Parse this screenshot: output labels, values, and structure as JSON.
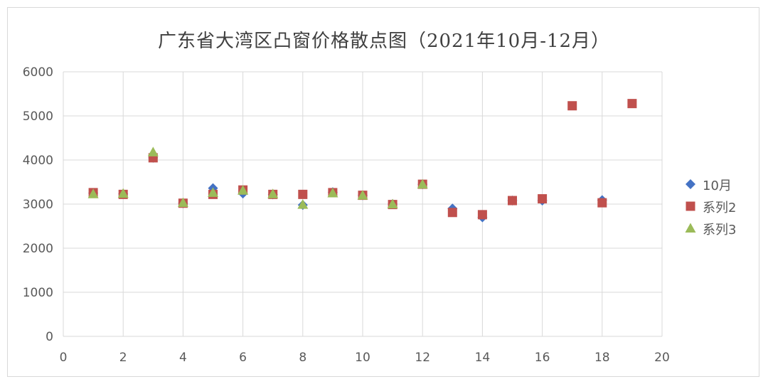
{
  "chart_data": {
    "type": "scatter",
    "title": "广东省大湾区凸窗价格散点图（2021年10月-12月）",
    "xlabel": "",
    "ylabel": "",
    "xlim": [
      0,
      20
    ],
    "ylim": [
      0,
      6000
    ],
    "x_ticks": [
      0,
      2,
      4,
      6,
      8,
      10,
      12,
      14,
      16,
      18,
      20
    ],
    "y_ticks": [
      0,
      1000,
      2000,
      3000,
      4000,
      5000,
      6000
    ],
    "grid": true,
    "legend_position": "right",
    "series": [
      {
        "name": "10月",
        "marker": "diamond",
        "color": "#4472C4",
        "points": [
          [
            1,
            3250
          ],
          [
            2,
            3230
          ],
          [
            3,
            4050
          ],
          [
            4,
            3020
          ],
          [
            5,
            3360
          ],
          [
            6,
            3240
          ],
          [
            7,
            3220
          ],
          [
            8,
            2980
          ],
          [
            9,
            3270
          ],
          [
            10,
            3200
          ],
          [
            11,
            3000
          ],
          [
            12,
            3450
          ],
          [
            13,
            2900
          ],
          [
            14,
            2700
          ],
          [
            15,
            3080
          ],
          [
            16,
            3080
          ],
          [
            18,
            3090
          ]
        ]
      },
      {
        "name": "系列2",
        "marker": "square",
        "color": "#C0504D",
        "points": [
          [
            1,
            3260
          ],
          [
            2,
            3220
          ],
          [
            3,
            4050
          ],
          [
            4,
            3020
          ],
          [
            5,
            3220
          ],
          [
            6,
            3320
          ],
          [
            7,
            3220
          ],
          [
            8,
            3220
          ],
          [
            9,
            3260
          ],
          [
            10,
            3200
          ],
          [
            11,
            2990
          ],
          [
            12,
            3450
          ],
          [
            13,
            2810
          ],
          [
            14,
            2760
          ],
          [
            15,
            3080
          ],
          [
            16,
            3120
          ],
          [
            17,
            5230
          ],
          [
            18,
            3030
          ],
          [
            19,
            5280
          ]
        ]
      },
      {
        "name": "系列3",
        "marker": "triangle",
        "color": "#9BBB59",
        "points": [
          [
            1,
            3230
          ],
          [
            2,
            3240
          ],
          [
            3,
            4180
          ],
          [
            4,
            3030
          ],
          [
            5,
            3260
          ],
          [
            6,
            3310
          ],
          [
            7,
            3230
          ],
          [
            8,
            2990
          ],
          [
            9,
            3250
          ],
          [
            10,
            3200
          ],
          [
            11,
            3000
          ],
          [
            12,
            3450
          ]
        ]
      }
    ]
  }
}
